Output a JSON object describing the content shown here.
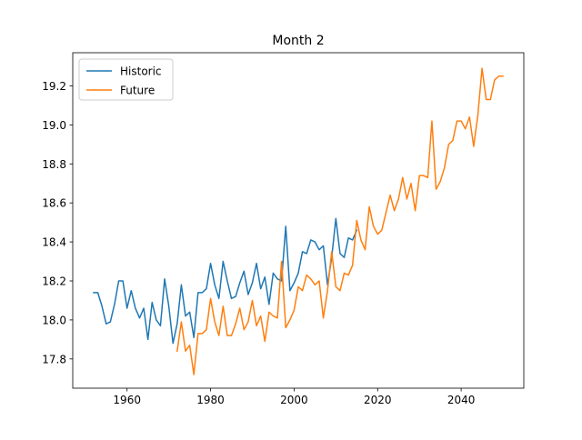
{
  "chart_data": {
    "type": "line",
    "title": "Month 2",
    "xlabel": "",
    "ylabel": "",
    "xlim": [
      1947,
      2055
    ],
    "ylim": [
      17.65,
      19.37
    ],
    "xticks": [
      1960,
      1980,
      2000,
      2020,
      2040
    ],
    "yticks": [
      17.8,
      18.0,
      18.2,
      18.4,
      18.6,
      18.8,
      19.0,
      19.2
    ],
    "grid": false,
    "legend": "upper-left",
    "series": [
      {
        "name": "Historic",
        "color": "#1f77b4",
        "x": [
          1952,
          1953,
          1954,
          1955,
          1956,
          1957,
          1958,
          1959,
          1960,
          1961,
          1962,
          1963,
          1964,
          1965,
          1966,
          1967,
          1968,
          1969,
          1970,
          1971,
          1972,
          1973,
          1974,
          1975,
          1976,
          1977,
          1978,
          1979,
          1980,
          1981,
          1982,
          1983,
          1984,
          1985,
          1986,
          1987,
          1988,
          1989,
          1990,
          1991,
          1992,
          1993,
          1994,
          1995,
          1996,
          1997,
          1998,
          1999,
          2000,
          2001,
          2002,
          2003,
          2004,
          2005,
          2006,
          2007,
          2008,
          2009,
          2010,
          2011,
          2012,
          2013,
          2014,
          2015
        ],
        "y": [
          18.14,
          18.14,
          18.07,
          17.98,
          17.99,
          18.08,
          18.2,
          18.2,
          18.06,
          18.15,
          18.06,
          18.01,
          18.06,
          17.9,
          18.09,
          18.0,
          17.97,
          18.21,
          18.07,
          17.88,
          17.98,
          18.18,
          18.02,
          18.04,
          17.91,
          18.14,
          18.14,
          18.16,
          18.29,
          18.18,
          18.11,
          18.3,
          18.2,
          18.11,
          18.12,
          18.19,
          18.25,
          18.13,
          18.19,
          18.29,
          18.16,
          18.22,
          18.08,
          18.24,
          18.21,
          18.2,
          18.48,
          18.15,
          18.19,
          18.24,
          18.35,
          18.34,
          18.41,
          18.4,
          18.36,
          18.38,
          18.18,
          18.32,
          18.52,
          18.34,
          18.32,
          18.42,
          18.41,
          18.46
        ]
      },
      {
        "name": "Future",
        "color": "#ff7f0e",
        "x": [
          1972,
          1973,
          1974,
          1975,
          1976,
          1977,
          1978,
          1979,
          1980,
          1981,
          1982,
          1983,
          1984,
          1985,
          1986,
          1987,
          1988,
          1989,
          1990,
          1991,
          1992,
          1993,
          1994,
          1995,
          1996,
          1997,
          1998,
          1999,
          2000,
          2001,
          2002,
          2003,
          2004,
          2005,
          2006,
          2007,
          2008,
          2009,
          2010,
          2011,
          2012,
          2013,
          2014,
          2015,
          2016,
          2017,
          2018,
          2019,
          2020,
          2021,
          2022,
          2023,
          2024,
          2025,
          2026,
          2027,
          2028,
          2029,
          2030,
          2031,
          2032,
          2033,
          2034,
          2035,
          2036,
          2037,
          2038,
          2039,
          2040,
          2041,
          2042,
          2043,
          2044,
          2045,
          2046,
          2047,
          2048,
          2049,
          2050
        ],
        "y": [
          17.84,
          17.99,
          17.84,
          17.87,
          17.72,
          17.93,
          17.93,
          17.95,
          18.11,
          17.99,
          17.92,
          18.07,
          17.92,
          17.92,
          17.98,
          18.06,
          17.95,
          17.99,
          18.1,
          17.97,
          18.02,
          17.89,
          18.04,
          18.02,
          18.01,
          18.3,
          17.96,
          18.0,
          18.05,
          18.17,
          18.15,
          18.23,
          18.21,
          18.18,
          18.2,
          18.01,
          18.15,
          18.35,
          18.17,
          18.15,
          18.24,
          18.23,
          18.28,
          18.51,
          18.41,
          18.36,
          18.58,
          18.48,
          18.44,
          18.46,
          18.55,
          18.64,
          18.56,
          18.62,
          18.73,
          18.62,
          18.7,
          18.56,
          18.74,
          18.74,
          18.73,
          19.02,
          18.67,
          18.71,
          18.78,
          18.9,
          18.92,
          19.02,
          19.02,
          18.98,
          19.04,
          18.89,
          19.05,
          19.29,
          19.13,
          19.13,
          19.23,
          19.25,
          19.25
        ]
      }
    ]
  }
}
